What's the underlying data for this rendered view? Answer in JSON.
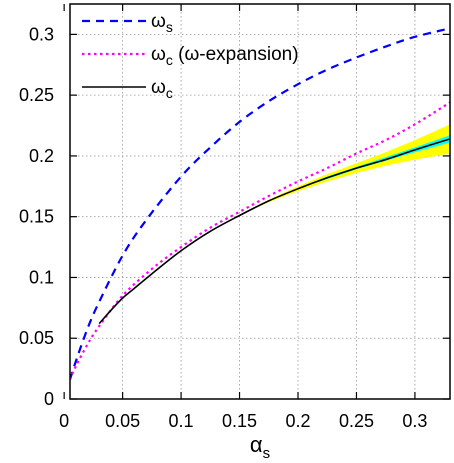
{
  "chart_data": {
    "type": "line",
    "title": "",
    "xlabel": {
      "main": "α",
      "sub": "s"
    },
    "ylabel": "",
    "xlim": [
      0.005,
      0.33
    ],
    "ylim": [
      0,
      0.325
    ],
    "grid": true,
    "grid_style": "dotted",
    "legend_position": "top-left",
    "x_ticks": [
      0,
      0.05,
      0.1,
      0.15,
      0.2,
      0.25,
      0.3
    ],
    "x_tick_labels": [
      "0",
      "0.05",
      "0.1",
      "0.15",
      "0.2",
      "0.25",
      "0.3"
    ],
    "y_ticks": [
      0,
      0.05,
      0.1,
      0.15,
      0.2,
      0.25,
      0.3
    ],
    "y_tick_labels": [
      "0",
      "0.05",
      "0.1",
      "0.15",
      "0.2",
      "0.25",
      "0.3"
    ],
    "series": [
      {
        "name": "ωs",
        "legend": {
          "main": "ω",
          "sub": "s",
          "suffix": ""
        },
        "color": "#0000ff",
        "style": "dashed",
        "x": [
          0.005,
          0.01,
          0.02,
          0.03,
          0.05,
          0.07,
          0.1,
          0.125,
          0.15,
          0.175,
          0.2,
          0.225,
          0.25,
          0.275,
          0.3,
          0.33
        ],
        "y": [
          0.016,
          0.031,
          0.058,
          0.08,
          0.118,
          0.147,
          0.183,
          0.207,
          0.228,
          0.245,
          0.259,
          0.271,
          0.281,
          0.29,
          0.298,
          0.305
        ]
      },
      {
        "name": "ωc (ω-expansion)",
        "legend": {
          "main": "ω",
          "sub": "c",
          "suffix": " (ω-expansion)"
        },
        "color": "#ff00ff",
        "style": "dotted",
        "x": [
          0.005,
          0.01,
          0.02,
          0.03,
          0.05,
          0.075,
          0.1,
          0.125,
          0.15,
          0.175,
          0.2,
          0.225,
          0.25,
          0.275,
          0.3,
          0.33
        ],
        "y": [
          0.016,
          0.027,
          0.045,
          0.06,
          0.085,
          0.107,
          0.125,
          0.141,
          0.154,
          0.167,
          0.179,
          0.19,
          0.202,
          0.213,
          0.226,
          0.244
        ]
      },
      {
        "name": "ωc",
        "legend": {
          "main": "ω",
          "sub": "c",
          "suffix": ""
        },
        "color": "#000000",
        "style": "solid",
        "x": [
          0.03,
          0.04,
          0.05,
          0.06,
          0.075,
          0.1,
          0.125,
          0.15,
          0.175,
          0.2,
          0.225,
          0.25,
          0.275,
          0.3,
          0.33
        ],
        "y": [
          0.062,
          0.073,
          0.083,
          0.091,
          0.103,
          0.122,
          0.138,
          0.151,
          0.163,
          0.173,
          0.182,
          0.19,
          0.197,
          0.205,
          0.214
        ],
        "band_outer": {
          "color": "#ffff00",
          "x": [
            0.15,
            0.175,
            0.2,
            0.225,
            0.25,
            0.275,
            0.3,
            0.33
          ],
          "y_low": [
            0.151,
            0.162,
            0.171,
            0.179,
            0.186,
            0.192,
            0.197,
            0.202
          ],
          "y_high": [
            0.151,
            0.164,
            0.175,
            0.185,
            0.194,
            0.203,
            0.213,
            0.226
          ]
        },
        "band_inner": {
          "color": "#00ffff",
          "x": [
            0.2,
            0.225,
            0.25,
            0.275,
            0.3,
            0.33
          ],
          "y_low": [
            0.173,
            0.181,
            0.189,
            0.196,
            0.203,
            0.211
          ],
          "y_high": [
            0.173,
            0.183,
            0.191,
            0.199,
            0.207,
            0.217
          ]
        }
      }
    ]
  }
}
